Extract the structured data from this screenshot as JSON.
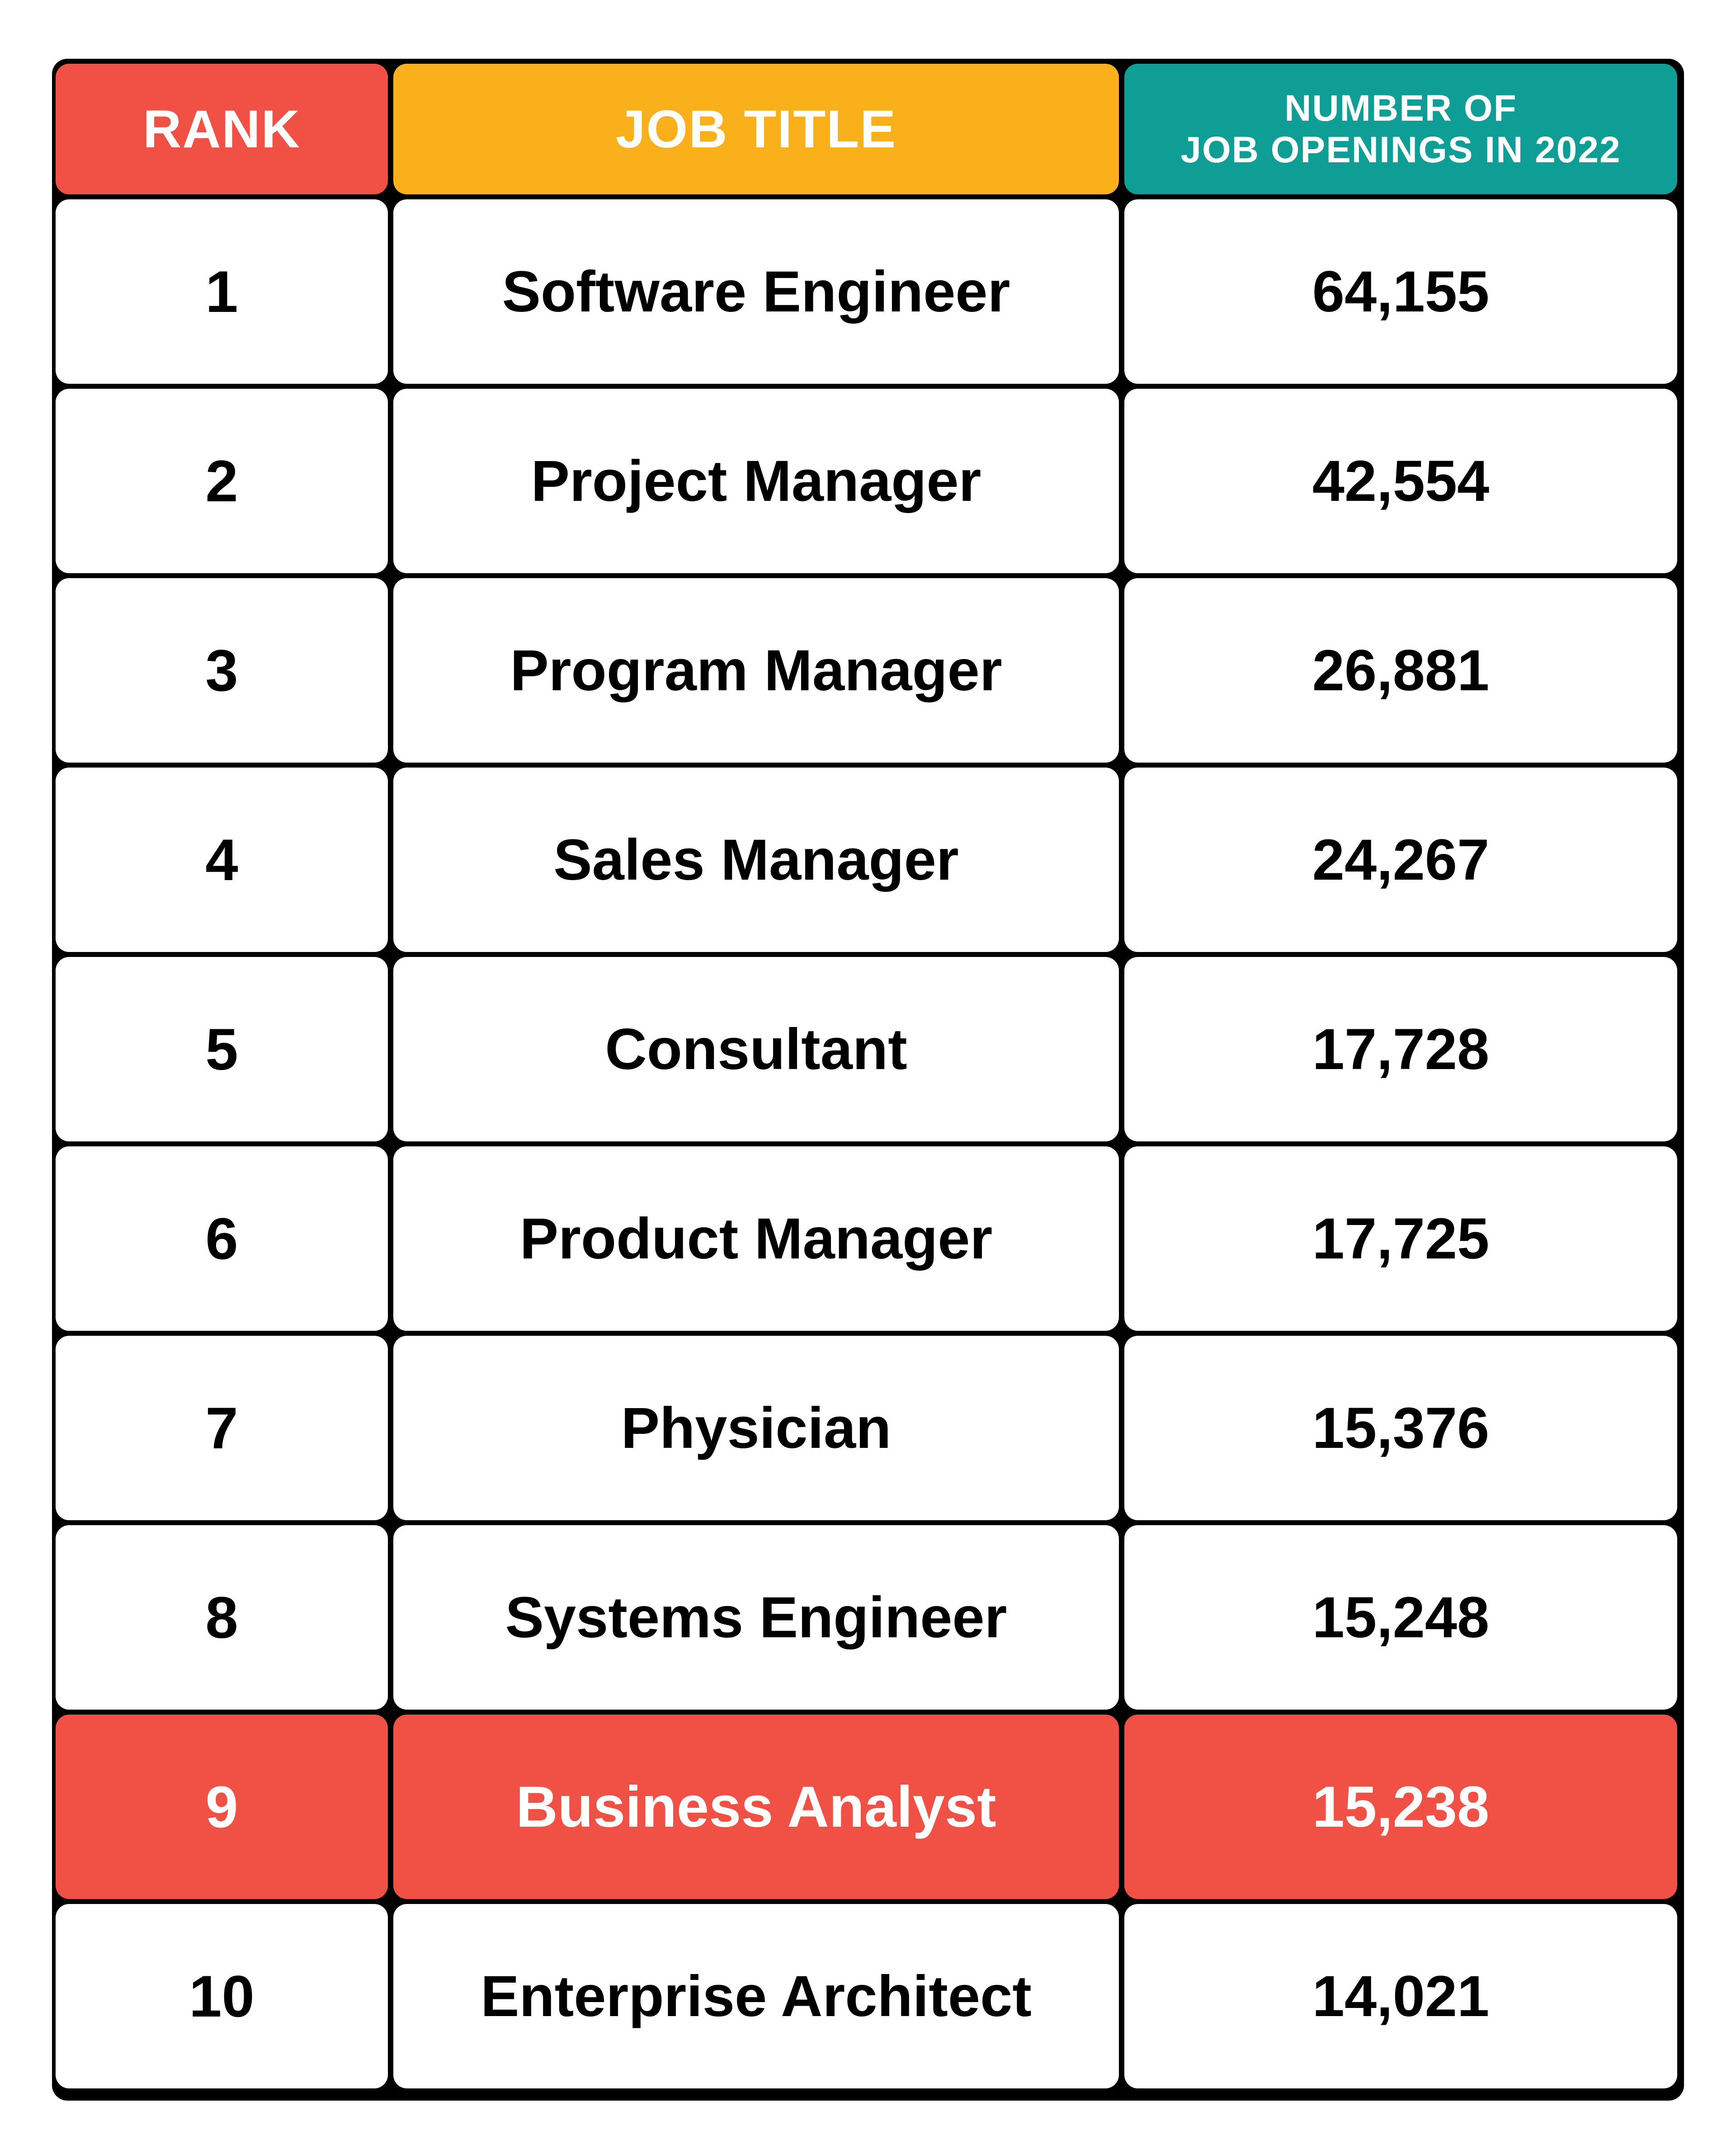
{
  "header": {
    "rank": "RANK",
    "job_title": "JOB TITLE",
    "openings_line1": "NUMBER OF",
    "openings_line2": "JOB OPENINGS IN 2022"
  },
  "colors": {
    "rank_header": "#f05144",
    "title_header": "#f9b01b",
    "count_header": "#0f9e95",
    "highlight_row": "#f05144",
    "border": "#000000"
  },
  "rows": [
    {
      "rank": "1",
      "title": "Software Engineer",
      "openings": "64,155",
      "highlight": false
    },
    {
      "rank": "2",
      "title": "Project Manager",
      "openings": "42,554",
      "highlight": false
    },
    {
      "rank": "3",
      "title": "Program Manager",
      "openings": "26,881",
      "highlight": false
    },
    {
      "rank": "4",
      "title": "Sales Manager",
      "openings": "24,267",
      "highlight": false
    },
    {
      "rank": "5",
      "title": "Consultant",
      "openings": "17,728",
      "highlight": false
    },
    {
      "rank": "6",
      "title": "Product Manager",
      "openings": "17,725",
      "highlight": false
    },
    {
      "rank": "7",
      "title": "Physician",
      "openings": "15,376",
      "highlight": false
    },
    {
      "rank": "8",
      "title": "Systems Engineer",
      "openings": "15,248",
      "highlight": false
    },
    {
      "rank": "9",
      "title": "Business Analyst",
      "openings": "15,238",
      "highlight": true
    },
    {
      "rank": "10",
      "title": "Enterprise Architect",
      "openings": "14,021",
      "highlight": false
    }
  ]
}
